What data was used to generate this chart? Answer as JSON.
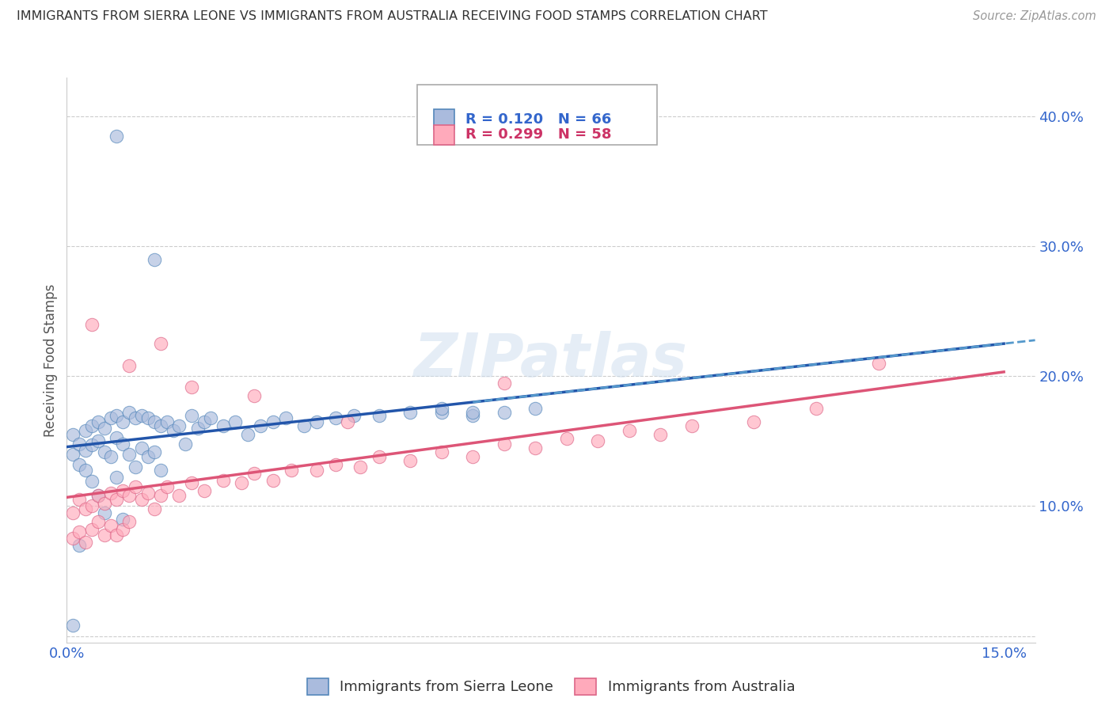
{
  "title": "IMMIGRANTS FROM SIERRA LEONE VS IMMIGRANTS FROM AUSTRALIA RECEIVING FOOD STAMPS CORRELATION CHART",
  "source": "Source: ZipAtlas.com",
  "ylabel": "Receiving Food Stamps",
  "xlim": [
    0.0,
    0.155
  ],
  "ylim": [
    -0.005,
    0.43
  ],
  "xticks": [
    0.0,
    0.05,
    0.1,
    0.15
  ],
  "xtick_labels": [
    "0.0%",
    "",
    "",
    "15.0%"
  ],
  "yticks_right": [
    0.0,
    0.1,
    0.2,
    0.3,
    0.4
  ],
  "ytick_labels_right": [
    "",
    "10.0%",
    "20.0%",
    "30.0%",
    "40.0%"
  ],
  "sierra_leone_fill": "#aabbdd",
  "sierra_leone_edge": "#5588bb",
  "australia_fill": "#ffaabb",
  "australia_edge": "#dd6688",
  "sierra_trend_color": "#2255aa",
  "australia_trend_color": "#dd5577",
  "R_sierra": 0.12,
  "N_sierra": 66,
  "R_australia": 0.299,
  "N_australia": 58,
  "watermark": "ZIPatlas",
  "legend_label_sierra": "Immigrants from Sierra Leone",
  "legend_label_australia": "Immigrants from Australia",
  "sierra_x": [
    0.001,
    0.001,
    0.002,
    0.002,
    0.003,
    0.003,
    0.003,
    0.004,
    0.004,
    0.004,
    0.005,
    0.005,
    0.005,
    0.006,
    0.006,
    0.006,
    0.007,
    0.007,
    0.008,
    0.008,
    0.008,
    0.009,
    0.009,
    0.009,
    0.01,
    0.01,
    0.011,
    0.011,
    0.012,
    0.012,
    0.013,
    0.013,
    0.014,
    0.014,
    0.015,
    0.015,
    0.016,
    0.017,
    0.018,
    0.019,
    0.02,
    0.021,
    0.022,
    0.023,
    0.025,
    0.027,
    0.029,
    0.031,
    0.033,
    0.035,
    0.038,
    0.04,
    0.043,
    0.046,
    0.05,
    0.055,
    0.06,
    0.065,
    0.07,
    0.075,
    0.008,
    0.014,
    0.001,
    0.002,
    0.06,
    0.065
  ],
  "sierra_y": [
    0.155,
    0.14,
    0.148,
    0.132,
    0.158,
    0.143,
    0.128,
    0.162,
    0.147,
    0.119,
    0.165,
    0.15,
    0.108,
    0.16,
    0.142,
    0.095,
    0.168,
    0.138,
    0.17,
    0.153,
    0.122,
    0.165,
    0.148,
    0.09,
    0.172,
    0.14,
    0.168,
    0.13,
    0.17,
    0.145,
    0.168,
    0.138,
    0.165,
    0.142,
    0.162,
    0.128,
    0.165,
    0.158,
    0.162,
    0.148,
    0.17,
    0.16,
    0.165,
    0.168,
    0.162,
    0.165,
    0.155,
    0.162,
    0.165,
    0.168,
    0.162,
    0.165,
    0.168,
    0.17,
    0.17,
    0.172,
    0.172,
    0.17,
    0.172,
    0.175,
    0.385,
    0.29,
    0.008,
    0.07,
    0.175,
    0.172
  ],
  "australia_x": [
    0.001,
    0.001,
    0.002,
    0.002,
    0.003,
    0.003,
    0.004,
    0.004,
    0.005,
    0.005,
    0.006,
    0.006,
    0.007,
    0.007,
    0.008,
    0.008,
    0.009,
    0.009,
    0.01,
    0.01,
    0.011,
    0.012,
    0.013,
    0.014,
    0.015,
    0.016,
    0.018,
    0.02,
    0.022,
    0.025,
    0.028,
    0.03,
    0.033,
    0.036,
    0.04,
    0.043,
    0.047,
    0.05,
    0.055,
    0.06,
    0.065,
    0.07,
    0.075,
    0.08,
    0.085,
    0.09,
    0.095,
    0.1,
    0.11,
    0.12,
    0.004,
    0.01,
    0.015,
    0.02,
    0.03,
    0.045,
    0.07,
    0.13
  ],
  "australia_y": [
    0.095,
    0.075,
    0.105,
    0.08,
    0.098,
    0.072,
    0.1,
    0.082,
    0.108,
    0.088,
    0.102,
    0.078,
    0.11,
    0.085,
    0.105,
    0.078,
    0.112,
    0.082,
    0.108,
    0.088,
    0.115,
    0.105,
    0.11,
    0.098,
    0.108,
    0.115,
    0.108,
    0.118,
    0.112,
    0.12,
    0.118,
    0.125,
    0.12,
    0.128,
    0.128,
    0.132,
    0.13,
    0.138,
    0.135,
    0.142,
    0.138,
    0.148,
    0.145,
    0.152,
    0.15,
    0.158,
    0.155,
    0.162,
    0.165,
    0.175,
    0.24,
    0.208,
    0.225,
    0.192,
    0.185,
    0.165,
    0.195,
    0.21
  ]
}
